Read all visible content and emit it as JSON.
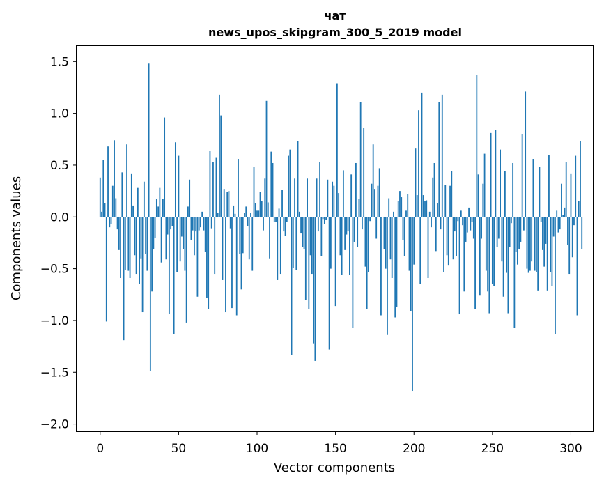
{
  "chart_data": {
    "type": "bar",
    "title": "чат",
    "subtitle": "news_upos_skipgram_300_5_2019 model",
    "xlabel": "Vector components",
    "ylabel": "Components values",
    "xlim": [
      -15,
      314
    ],
    "ylim": [
      -2.07,
      1.65
    ],
    "xticks": [
      0,
      50,
      100,
      150,
      200,
      250,
      300
    ],
    "xtick_labels": [
      "0",
      "50",
      "100",
      "150",
      "200",
      "250",
      "300"
    ],
    "yticks": [
      1.5,
      1.0,
      0.5,
      0.0,
      -0.5,
      -1.0,
      -1.5,
      -2.0
    ],
    "ytick_labels": [
      "1.5",
      "1.0",
      "0.5",
      "0.0",
      "−0.5",
      "−1.0",
      "−1.5",
      "−2.0"
    ],
    "bar_color": "#1f77b4",
    "grid": false,
    "values": [
      0.38,
      0.05,
      0.55,
      0.13,
      -1.01,
      0.68,
      -0.1,
      -0.07,
      0.3,
      0.74,
      0.18,
      -0.12,
      -0.32,
      -0.59,
      0.43,
      -1.19,
      -0.51,
      0.7,
      -0.52,
      -0.59,
      0.42,
      0.11,
      -0.37,
      -0.55,
      0.28,
      -0.65,
      -0.4,
      -0.92,
      0.34,
      -0.36,
      -0.52,
      1.48,
      -1.49,
      -0.72,
      -0.31,
      -0.2,
      0.17,
      0.1,
      0.28,
      -0.44,
      0.17,
      0.96,
      -0.41,
      -0.17,
      -0.94,
      -0.12,
      -0.09,
      -1.13,
      0.72,
      -0.53,
      0.59,
      -0.43,
      -0.19,
      -0.31,
      -0.52,
      -1.02,
      0.1,
      0.36,
      -0.22,
      -0.13,
      -0.37,
      -0.14,
      -0.77,
      -0.13,
      -0.1,
      0.05,
      -0.13,
      -0.34,
      -0.78,
      -0.89,
      0.64,
      -0.11,
      0.53,
      -0.55,
      0.57,
      0.04,
      1.18,
      0.98,
      -0.61,
      0.27,
      -0.92,
      0.24,
      0.25,
      -0.11,
      -0.88,
      0.11,
      0.03,
      -0.95,
      0.56,
      -0.36,
      -0.7,
      -0.35,
      0.04,
      0.1,
      -0.09,
      -0.41,
      0.04,
      -0.52,
      0.48,
      0.13,
      0.06,
      0.06,
      0.24,
      0.15,
      -0.13,
      0.37,
      1.12,
      0.14,
      -0.4,
      0.63,
      0.52,
      -0.05,
      -0.05,
      -0.61,
      0.08,
      -0.55,
      0.26,
      -0.14,
      -0.18,
      -0.05,
      0.59,
      0.65,
      -1.33,
      -0.49,
      0.37,
      -0.51,
      0.73,
      0.05,
      -0.16,
      -0.29,
      -0.31,
      -0.8,
      0.37,
      -0.89,
      -0.37,
      -0.55,
      -1.22,
      -1.39,
      0.37,
      -0.14,
      0.53,
      -0.38,
      -0.02,
      -0.07,
      -0.03,
      0.36,
      -1.28,
      -0.5,
      0.34,
      0.3,
      -0.86,
      1.29,
      0.23,
      -0.37,
      -0.56,
      0.45,
      -0.32,
      -0.17,
      -0.14,
      -0.56,
      0.41,
      -1.07,
      -0.24,
      0.52,
      -0.29,
      0.17,
      1.11,
      -0.12,
      0.86,
      -0.48,
      -0.89,
      -0.53,
      -0.04,
      0.32,
      0.7,
      0.27,
      -0.21,
      0.3,
      0.47,
      -0.95,
      0.0,
      -0.31,
      -0.5,
      -1.14,
      0.18,
      -0.41,
      -0.59,
      0.05,
      -0.97,
      -0.87,
      0.15,
      0.25,
      0.19,
      -0.22,
      -0.38,
      0.06,
      0.22,
      -0.52,
      -0.91,
      -1.68,
      -0.46,
      0.66,
      0.21,
      1.03,
      -0.65,
      1.2,
      0.21,
      0.15,
      0.16,
      -0.59,
      0.05,
      -0.1,
      0.38,
      0.52,
      -0.33,
      0.13,
      1.11,
      -0.12,
      1.18,
      -0.53,
      0.31,
      -0.37,
      -0.47,
      0.3,
      0.44,
      -0.41,
      -0.14,
      -0.38,
      -0.04,
      -0.94,
      0.06,
      -0.08,
      -0.72,
      -0.24,
      -0.15,
      0.09,
      -0.13,
      -0.05,
      -0.21,
      -0.89,
      1.37,
      0.41,
      -0.76,
      -0.21,
      0.32,
      0.61,
      -0.52,
      -0.72,
      -0.93,
      0.81,
      -0.65,
      -0.67,
      0.84,
      -0.29,
      -0.21,
      0.65,
      -0.43,
      -0.77,
      0.44,
      -0.54,
      -0.93,
      -0.29,
      -0.06,
      0.52,
      -1.07,
      -0.34,
      -0.46,
      -0.31,
      -0.24,
      0.8,
      -0.13,
      1.21,
      -0.5,
      -0.54,
      -0.52,
      -0.43,
      0.56,
      -0.52,
      -0.53,
      -0.71,
      0.48,
      -0.05,
      -0.32,
      -0.48,
      -0.26,
      -0.71,
      0.6,
      -0.53,
      -0.67,
      -0.19,
      -1.13,
      0.06,
      -0.15,
      -0.12,
      0.32,
      0.02,
      0.09,
      0.53,
      -0.27,
      -0.55,
      0.42,
      -0.39,
      -0.08,
      0.59,
      -0.95,
      0.15,
      0.73,
      -0.31
    ]
  }
}
